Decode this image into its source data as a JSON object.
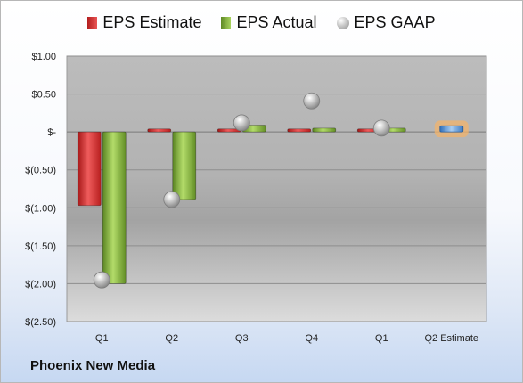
{
  "legend": {
    "estimate_label": "EPS Estimate",
    "actual_label": "EPS Actual",
    "gaap_label": "EPS GAAP"
  },
  "footer": {
    "company": "Phoenix New Media"
  },
  "colors": {
    "estimate": "#d93a3a",
    "actual": "#8fbf48",
    "gaap": "#b9b9b9",
    "estimate_highlight_bar": "#6fa3dc",
    "estimate_highlight_glow": "#f2b36b"
  },
  "chart_data": {
    "type": "bar",
    "categories": [
      "Q1",
      "Q2",
      "Q3",
      "Q4",
      "Q1",
      "Q2 Estimate"
    ],
    "series": [
      {
        "name": "EPS Estimate",
        "values": [
          -0.97,
          0.04,
          0.04,
          0.04,
          0.04,
          null
        ]
      },
      {
        "name": "EPS Actual",
        "values": [
          -2.0,
          -0.89,
          0.09,
          0.05,
          0.05,
          0.08
        ]
      },
      {
        "name": "EPS GAAP",
        "values": [
          -1.95,
          -0.89,
          0.12,
          0.41,
          0.05,
          null
        ]
      }
    ],
    "ylim": [
      -2.5,
      1.0
    ],
    "yticks": [
      {
        "value": 1.0,
        "label": "$1.00"
      },
      {
        "value": 0.5,
        "label": "$0.50"
      },
      {
        "value": 0.0,
        "label": "$-"
      },
      {
        "value": -0.5,
        "label": "$(0.50)"
      },
      {
        "value": -1.0,
        "label": "$(1.00)"
      },
      {
        "value": -1.5,
        "label": "$(1.50)"
      },
      {
        "value": -2.0,
        "label": "$(2.00)"
      },
      {
        "value": -2.5,
        "label": "$(2.50)"
      }
    ],
    "grid": true,
    "legend_position": "top"
  }
}
